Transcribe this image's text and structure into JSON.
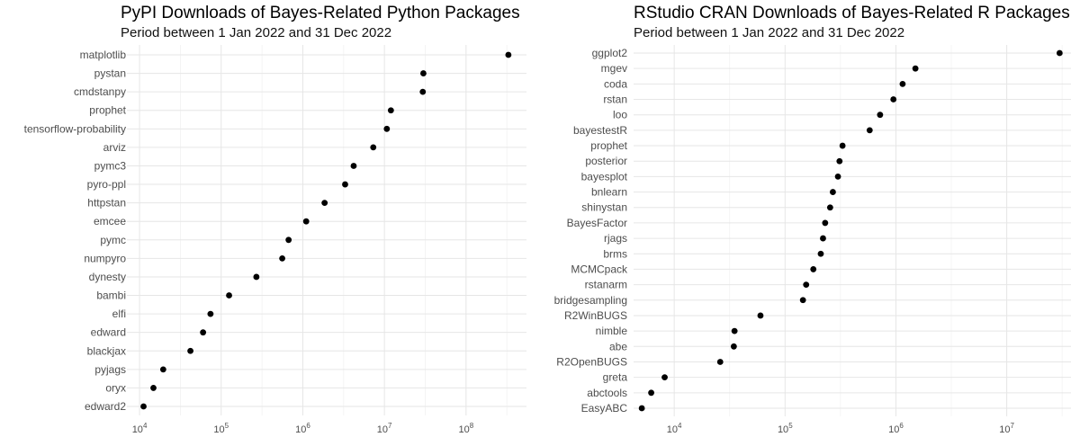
{
  "chart_data": [
    {
      "type": "scatter",
      "title": "PyPI Downloads of Bayes-Related Python Packages",
      "subtitle": "Period between 1 Jan 2022 and 31 Dec 2022",
      "xlabel": "",
      "ylabel": "",
      "x_scale": "log10",
      "xlim": [
        7000,
        550000000
      ],
      "x_tick_labels": [
        {
          "exp": 4,
          "label": "10",
          "sup": "4"
        },
        {
          "exp": 5,
          "label": "10",
          "sup": "5"
        },
        {
          "exp": 6,
          "label": "10",
          "sup": "6"
        },
        {
          "exp": 7,
          "label": "10",
          "sup": "7"
        },
        {
          "exp": 8,
          "label": "10",
          "sup": "8"
        }
      ],
      "categories": [
        "matplotlib",
        "pystan",
        "cmdstanpy",
        "prophet",
        "tensorflow-probability",
        "arviz",
        "pymc3",
        "pyro-ppl",
        "httpstan",
        "emcee",
        "pymc",
        "numpyro",
        "dynesty",
        "bambi",
        "elfi",
        "edward",
        "blackjax",
        "pyjags",
        "oryx",
        "edward2"
      ],
      "values": [
        330000000,
        30000000,
        29500000,
        12000000,
        10700000,
        7300000,
        4200000,
        3300000,
        1850000,
        1100000,
        670000,
        560000,
        270000,
        125000,
        74000,
        60000,
        42000,
        19500,
        14800,
        11200
      ]
    },
    {
      "type": "scatter",
      "title": "RStudio CRAN Downloads of Bayes-Related R Packages",
      "subtitle": "Period between 1 Jan 2022 and 31 Dec 2022",
      "xlabel": "",
      "ylabel": "",
      "x_scale": "log10",
      "xlim": [
        4300,
        38000000
      ],
      "x_tick_labels": [
        {
          "exp": 4,
          "label": "10",
          "sup": "4"
        },
        {
          "exp": 5,
          "label": "10",
          "sup": "5"
        },
        {
          "exp": 6,
          "label": "10",
          "sup": "6"
        },
        {
          "exp": 7,
          "label": "10",
          "sup": "7"
        }
      ],
      "categories": [
        "ggplot2",
        "mgev",
        "coda",
        "rstan",
        "loo",
        "bayestestR",
        "prophet",
        "posterior",
        "bayesplot",
        "bnlearn",
        "shinystan",
        "BayesFactor",
        "rjags",
        "brms",
        "MCMCpack",
        "rstanarm",
        "bridgesampling",
        "R2WinBUGS",
        "nimble",
        "abe",
        "R2OpenBUGS",
        "greta",
        "abctools",
        "EasyABC"
      ],
      "values": [
        30000000,
        1500000,
        1150000,
        950000,
        720000,
        580000,
        330000,
        310000,
        300000,
        270000,
        255000,
        230000,
        220000,
        210000,
        180000,
        155000,
        145000,
        60000,
        35000,
        34500,
        26000,
        8200,
        6200,
        5100
      ]
    }
  ]
}
